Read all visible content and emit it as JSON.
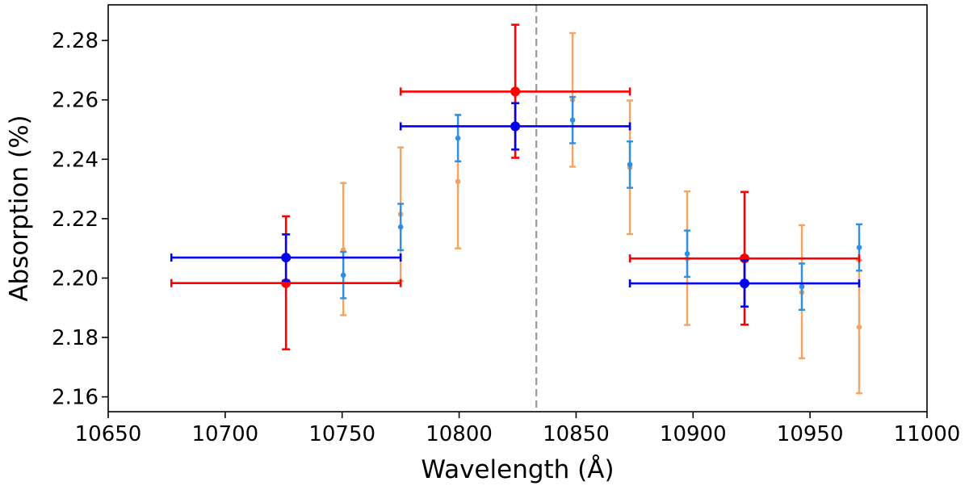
{
  "chart_data": {
    "type": "scatter",
    "title": "",
    "xlabel": "Wavelength (Å)",
    "ylabel": "Absorption (%)",
    "xlim": [
      10650,
      11000
    ],
    "ylim": [
      2.155,
      2.292
    ],
    "xticks": [
      10650,
      10700,
      10750,
      10800,
      10850,
      10900,
      10950,
      11000
    ],
    "yticks": [
      2.16,
      2.18,
      2.2,
      2.22,
      2.24,
      2.26,
      2.28
    ],
    "ytick_labels": [
      "2.16",
      "2.18",
      "2.20",
      "2.22",
      "2.24",
      "2.26",
      "2.28"
    ],
    "reference_line": {
      "x": 10833,
      "style": "dashed",
      "color": "#999999"
    },
    "series": [
      {
        "name": "orange-fine",
        "color": "#f4a460",
        "marker_size": "small",
        "points": [
          {
            "x": 10750.5,
            "y": 2.2095,
            "ylo": 2.1875,
            "yhi": 2.232
          },
          {
            "x": 10775.0,
            "y": 2.2215,
            "ylo": 2.199,
            "yhi": 2.244
          },
          {
            "x": 10799.5,
            "y": 2.2325,
            "ylo": 2.21,
            "yhi": 2.255
          },
          {
            "x": 10848.5,
            "y": 2.26,
            "ylo": 2.2375,
            "yhi": 2.2825
          },
          {
            "x": 10873.0,
            "y": 2.2372,
            "ylo": 2.2148,
            "yhi": 2.2598
          },
          {
            "x": 10897.5,
            "y": 2.2065,
            "ylo": 2.1842,
            "yhi": 2.2292
          },
          {
            "x": 10946.5,
            "y": 2.1952,
            "ylo": 2.173,
            "yhi": 2.2178
          },
          {
            "x": 10971.0,
            "y": 2.1835,
            "ylo": 2.1612,
            "yhi": 2.206
          }
        ]
      },
      {
        "name": "light-blue-fine",
        "color": "#2e8fe3",
        "marker_size": "small",
        "points": [
          {
            "x": 10750.5,
            "y": 2.201,
            "ylo": 2.1932,
            "yhi": 2.2088
          },
          {
            "x": 10775.0,
            "y": 2.2172,
            "ylo": 2.2094,
            "yhi": 2.225
          },
          {
            "x": 10799.5,
            "y": 2.2471,
            "ylo": 2.2393,
            "yhi": 2.2549
          },
          {
            "x": 10848.5,
            "y": 2.2532,
            "ylo": 2.2454,
            "yhi": 2.261
          },
          {
            "x": 10873.0,
            "y": 2.2382,
            "ylo": 2.2304,
            "yhi": 2.246
          },
          {
            "x": 10897.5,
            "y": 2.2082,
            "ylo": 2.2004,
            "yhi": 2.216
          },
          {
            "x": 10946.5,
            "y": 2.1971,
            "ylo": 2.1893,
            "yhi": 2.2049
          },
          {
            "x": 10971.0,
            "y": 2.2103,
            "ylo": 2.2025,
            "yhi": 2.2181
          }
        ]
      },
      {
        "name": "red-binned",
        "color": "#ff0000",
        "marker_size": "large",
        "points": [
          {
            "x": 10726,
            "y": 2.1983,
            "ylo": 2.176,
            "yhi": 2.2208,
            "xlo": 10677,
            "xhi": 10775
          },
          {
            "x": 10824,
            "y": 2.2628,
            "ylo": 2.2405,
            "yhi": 2.2853,
            "xlo": 10775,
            "xhi": 10873
          },
          {
            "x": 10922,
            "y": 2.2066,
            "ylo": 2.1843,
            "yhi": 2.229,
            "xlo": 10873,
            "xhi": 10971
          }
        ]
      },
      {
        "name": "blue-binned",
        "color": "#0000ee",
        "marker_size": "large",
        "points": [
          {
            "x": 10726,
            "y": 2.2069,
            "ylo": 2.1991,
            "yhi": 2.2147,
            "xlo": 10677,
            "xhi": 10775
          },
          {
            "x": 10824,
            "y": 2.2511,
            "ylo": 2.2433,
            "yhi": 2.2589,
            "xlo": 10775,
            "xhi": 10873
          },
          {
            "x": 10922,
            "y": 2.1982,
            "ylo": 2.1904,
            "yhi": 2.206,
            "xlo": 10873,
            "xhi": 10971
          }
        ]
      }
    ]
  }
}
